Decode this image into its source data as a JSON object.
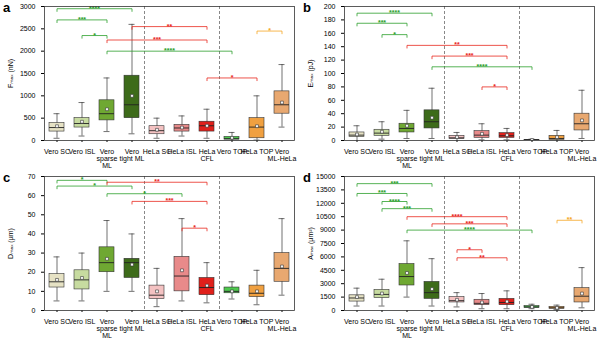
{
  "chart_data": [
    {
      "type": "box",
      "panel": "a",
      "y_label": "Fₘₐₓ (nN)",
      "categories": [
        "Vero SC",
        "Vero ISL",
        "Vero\nsparse\nML",
        "Vero\ntight ML",
        "HeLa SC",
        "HeLa ISL",
        "HeLa\nCFL",
        "Vero TOP",
        "HeLa TOP",
        "Vero\nML-HeLa"
      ],
      "colors": [
        "#e6e2c4",
        "#c7dba0",
        "#6fa832",
        "#3d6b1a",
        "#f4c2c2",
        "#e88a8a",
        "#e0201b",
        "#4ec94e",
        "#f0a040",
        "#e8a870"
      ],
      "stats": {
        "low": [
          50,
          100,
          200,
          150,
          50,
          100,
          50,
          0,
          10,
          300
        ],
        "q1": [
          200,
          290,
          450,
          500,
          140,
          200,
          200,
          20,
          50,
          600
        ],
        "median": [
          290,
          380,
          600,
          800,
          220,
          280,
          330,
          40,
          300,
          800
        ],
        "q3": [
          390,
          500,
          900,
          1450,
          320,
          350,
          420,
          80,
          500,
          1100
        ],
        "high": [
          600,
          850,
          1400,
          2600,
          500,
          550,
          700,
          180,
          1000,
          1700
        ],
        "mean": [
          320,
          420,
          700,
          1000,
          240,
          290,
          330,
          60,
          320,
          850
        ]
      },
      "ylim": [
        0,
        3000
      ],
      "yticks": [
        0,
        500,
        1000,
        1500,
        2000,
        2500,
        3000
      ],
      "significance": [
        {
          "from": "Vero SC",
          "to": "Vero\ntight ML",
          "y": 2950,
          "label": "****",
          "color": "#2ca02c"
        },
        {
          "from": "Vero SC",
          "to": "Vero\nsparse\nML",
          "y": 2700,
          "label": "***",
          "color": "#2ca02c"
        },
        {
          "from": "Vero ISL",
          "to": "Vero\nsparse\nML",
          "y": 2350,
          "label": "*",
          "color": "#2ca02c"
        },
        {
          "from": "Vero\nsparse\nML",
          "to": "Vero TOP",
          "y": 2000,
          "label": "****",
          "color": "#2ca02c"
        },
        {
          "from": "Vero\ntight ML",
          "to": "HeLa\nCFL",
          "y": 2550,
          "label": "**",
          "color": "#e8281e"
        },
        {
          "from": "Vero\nsparse\nML",
          "to": "HeLa\nCFL",
          "y": 2250,
          "label": "***",
          "color": "#e8281e"
        },
        {
          "from": "HeLa\nCFL",
          "to": "HeLa TOP",
          "y": 1400,
          "label": "*",
          "color": "#e8281e"
        },
        {
          "from": "HeLa TOP",
          "to": "Vero\nML-HeLa",
          "y": 2450,
          "label": "*",
          "color": "#f5a623"
        }
      ]
    },
    {
      "type": "box",
      "panel": "b",
      "y_label": "Eₘₐₓ (pJ)",
      "categories": [
        "Vero SC",
        "Vero ISL",
        "Vero\nsparse\nML",
        "Vero\ntight ML",
        "HeLa SC",
        "HeLa ISL",
        "HeLa\nCFL",
        "Vero TOP",
        "HeLa TOP",
        "Vero\nML-HeLa"
      ],
      "colors": [
        "#e6e2c4",
        "#c7dba0",
        "#6fa832",
        "#3d6b1a",
        "#f4c2c2",
        "#e88a8a",
        "#e0201b",
        "#4ec94e",
        "#f0a040",
        "#e8a870"
      ],
      "stats": {
        "low": [
          0,
          2,
          3,
          3,
          0,
          1,
          1,
          0,
          0,
          3
        ],
        "q1": [
          5,
          7,
          12,
          18,
          2,
          4,
          4,
          0.3,
          1,
          15
        ],
        "median": [
          8,
          11,
          18,
          28,
          4,
          8,
          7,
          0.5,
          3,
          25
        ],
        "q3": [
          12,
          16,
          25,
          45,
          7,
          14,
          11,
          1,
          7,
          40
        ],
        "high": [
          22,
          28,
          45,
          78,
          12,
          25,
          18,
          2,
          15,
          75
        ],
        "mean": [
          9,
          13,
          22,
          34,
          5,
          10,
          8,
          0.7,
          5,
          30
        ]
      },
      "ylim": [
        0,
        200
      ],
      "yticks": [
        0,
        20,
        40,
        60,
        80,
        100,
        120,
        140,
        160,
        180,
        200
      ],
      "significance": [
        {
          "from": "Vero SC",
          "to": "Vero\ntight ML",
          "y": 190,
          "label": "****",
          "color": "#2ca02c"
        },
        {
          "from": "Vero SC",
          "to": "Vero\nsparse\nML",
          "y": 175,
          "label": "***",
          "color": "#2ca02c"
        },
        {
          "from": "Vero ISL",
          "to": "Vero\nsparse\nML",
          "y": 158,
          "label": "*",
          "color": "#2ca02c"
        },
        {
          "from": "Vero\ntight ML",
          "to": "Vero TOP",
          "y": 110,
          "label": "****",
          "color": "#2ca02c"
        },
        {
          "from": "Vero\nsparse\nML",
          "to": "HeLa\nCFL",
          "y": 142,
          "label": "**",
          "color": "#e8281e"
        },
        {
          "from": "Vero\ntight ML",
          "to": "HeLa\nCFL",
          "y": 126,
          "label": "***",
          "color": "#e8281e"
        },
        {
          "from": "HeLa ISL",
          "to": "HeLa\nCFL",
          "y": 80,
          "label": "*",
          "color": "#e8281e"
        }
      ]
    },
    {
      "type": "box",
      "panel": "c",
      "y_label": "Dₘₐₓ (µm)",
      "categories": [
        "Vero SC",
        "Vero ISL",
        "Vero\nsparse\nML",
        "Vero\ntight ML",
        "HeLa SC",
        "HeLa ISL",
        "HeLa\nCFL",
        "Vero TOP",
        "HeLa TOP",
        "Vero\nML-HeLa"
      ],
      "colors": [
        "#e6e2c4",
        "#c7dba0",
        "#6fa832",
        "#3d6b1a",
        "#f4c2c2",
        "#e88a8a",
        "#e0201b",
        "#4ec94e",
        "#f0a040",
        "#e8a870"
      ],
      "stats": {
        "low": [
          5,
          5,
          10,
          10,
          2,
          5,
          4,
          6,
          3,
          8
        ],
        "q1": [
          12,
          11,
          20,
          17,
          6,
          10,
          8,
          9,
          7,
          15
        ],
        "median": [
          15,
          16,
          25,
          25,
          8,
          18,
          12,
          10,
          9,
          22
        ],
        "q3": [
          19,
          21,
          33,
          27,
          13,
          28,
          17,
          12,
          13,
          30
        ],
        "high": [
          28,
          30,
          47,
          40,
          22,
          48,
          25,
          15,
          21,
          48
        ],
        "mean": [
          16,
          17,
          27,
          24,
          10,
          21,
          13,
          10,
          10,
          23
        ]
      },
      "ylim": [
        0,
        70
      ],
      "yticks": [
        0,
        10,
        20,
        30,
        40,
        50,
        60,
        70
      ],
      "significance": [
        {
          "from": "Vero SC",
          "to": "Vero\nsparse\nML",
          "y": 68,
          "label": "*",
          "color": "#2ca02c"
        },
        {
          "from": "Vero SC",
          "to": "Vero\ntight ML",
          "y": 65,
          "label": "*",
          "color": "#2ca02c"
        },
        {
          "from": "Vero\nsparse\nML",
          "to": "HeLa ISL",
          "y": 61,
          "label": "*",
          "color": "#2ca02c"
        },
        {
          "from": "Vero\nsparse\nML",
          "to": "HeLa\nCFL",
          "y": 67,
          "label": "**",
          "color": "#e8281e"
        },
        {
          "from": "Vero\ntight ML",
          "to": "HeLa\nCFL",
          "y": 57,
          "label": "***",
          "color": "#e8281e"
        },
        {
          "from": "HeLa ISL",
          "to": "HeLa\nCFL",
          "y": 43,
          "label": "*",
          "color": "#e8281e"
        }
      ]
    },
    {
      "type": "box",
      "panel": "d",
      "y_label": "Aₘₐₓ (µm²)",
      "categories": [
        "Vero SC",
        "Vero ISL",
        "Vero\nsparse\nML",
        "Vero\ntight ML",
        "HeLa SC",
        "HeLa ISL",
        "HeLa\nCFL",
        "Vero TOP",
        "HeLa TOP",
        "Vero\nML-HeLa"
      ],
      "colors": [
        "#e6e2c4",
        "#c7dba0",
        "#6fa832",
        "#3d6b1a",
        "#f4c2c2",
        "#e88a8a",
        "#e0201b",
        "#4ec94e",
        "#f0a040",
        "#e8a870"
      ],
      "stats": {
        "low": [
          500,
          500,
          1500,
          500,
          400,
          200,
          200,
          200,
          100,
          300
        ],
        "q1": [
          1000,
          1400,
          2800,
          1300,
          900,
          600,
          600,
          300,
          200,
          900
        ],
        "median": [
          1400,
          1800,
          3800,
          2000,
          1100,
          800,
          900,
          400,
          300,
          1600
        ],
        "q3": [
          1700,
          2300,
          5200,
          3200,
          1500,
          1200,
          1300,
          500,
          400,
          2500
        ],
        "high": [
          2500,
          3500,
          7800,
          5800,
          2000,
          1900,
          2200,
          700,
          600,
          4800
        ],
        "mean": [
          1500,
          1900,
          4200,
          2400,
          1200,
          900,
          1000,
          400,
          300,
          1900
        ]
      },
      "ylim": [
        0,
        15000
      ],
      "yticks": [
        0,
        1500,
        3000,
        4500,
        6000,
        7500,
        9000,
        10500,
        12000,
        13500,
        15000
      ],
      "significance": [
        {
          "from": "Vero SC",
          "to": "Vero\ntight ML",
          "y": 14200,
          "label": "***",
          "color": "#2ca02c"
        },
        {
          "from": "Vero SC",
          "to": "Vero\nsparse\nML",
          "y": 13100,
          "label": "***",
          "color": "#2ca02c"
        },
        {
          "from": "Vero ISL",
          "to": "Vero\nsparse\nML",
          "y": 12200,
          "label": "****",
          "color": "#2ca02c"
        },
        {
          "from": "Vero ISL",
          "to": "Vero\ntight ML",
          "y": 11400,
          "label": "***",
          "color": "#2ca02c"
        },
        {
          "from": "Vero\nsparse\nML",
          "to": "Vero TOP",
          "y": 9000,
          "label": "****",
          "color": "#2ca02c"
        },
        {
          "from": "Vero\nsparse\nML",
          "to": "HeLa\nCFL",
          "y": 10500,
          "label": "****",
          "color": "#e8281e"
        },
        {
          "from": "Vero\ntight ML",
          "to": "HeLa\nCFL",
          "y": 9700,
          "label": "***",
          "color": "#e8281e"
        },
        {
          "from": "HeLa SC",
          "to": "HeLa ISL",
          "y": 6800,
          "label": "*",
          "color": "#e8281e"
        },
        {
          "from": "HeLa SC",
          "to": "HeLa\nCFL",
          "y": 5900,
          "label": "**",
          "color": "#e8281e"
        },
        {
          "from": "HeLa TOP",
          "to": "Vero\nML-HeLa",
          "y": 10100,
          "label": "**",
          "color": "#f5a623"
        }
      ]
    }
  ]
}
